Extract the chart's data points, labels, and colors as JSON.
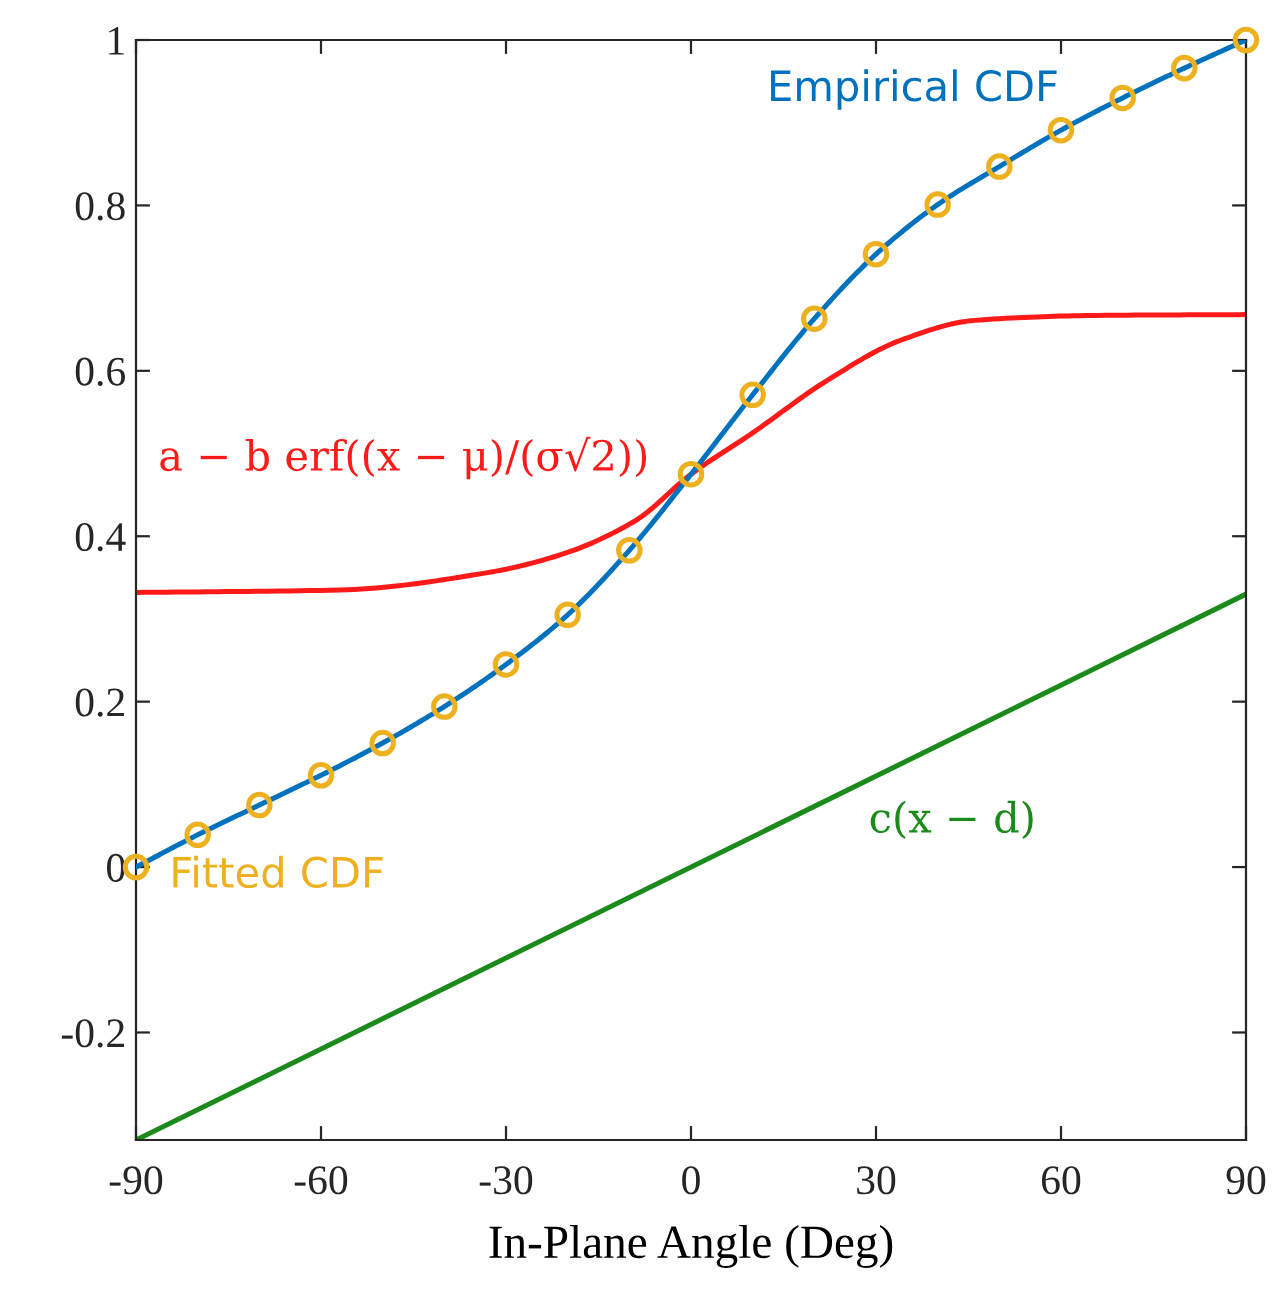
{
  "chart_data": {
    "type": "line",
    "xlabel": "In-Plane Angle (Deg)",
    "xlim": [
      -90,
      90
    ],
    "xticks": [
      -90,
      -60,
      -30,
      0,
      30,
      60,
      90
    ],
    "ylim": [
      -0.33,
      1
    ],
    "yticks": [
      -0.2,
      0,
      0.2,
      0.4,
      0.6,
      0.8,
      1
    ],
    "grid": false,
    "legend": false,
    "series": [
      {
        "name": "Empirical CDF",
        "color": "#0072bd",
        "x": [
          -90,
          -80,
          -70,
          -60,
          -50,
          -40,
          -30,
          -20,
          -10,
          0,
          10,
          20,
          30,
          40,
          50,
          60,
          70,
          80,
          90
        ],
        "values": [
          0,
          0.039,
          0.075,
          0.111,
          0.15,
          0.194,
          0.245,
          0.305,
          0.383,
          0.475,
          0.571,
          0.663,
          0.741,
          0.801,
          0.847,
          0.891,
          0.93,
          0.966,
          1
        ]
      },
      {
        "name": "Fitted CDF",
        "type": "scatter",
        "marker": "circle",
        "color": "#edb120",
        "x": [
          -90,
          -80,
          -70,
          -60,
          -50,
          -40,
          -30,
          -20,
          -10,
          0,
          10,
          20,
          30,
          40,
          50,
          60,
          70,
          80,
          90
        ],
        "values": [
          0,
          0.039,
          0.075,
          0.111,
          0.15,
          0.194,
          0.245,
          0.305,
          0.383,
          0.475,
          0.571,
          0.663,
          0.741,
          0.801,
          0.847,
          0.891,
          0.93,
          0.966,
          1
        ]
      },
      {
        "name": "a − b erf((x − μ)/(σ√2))",
        "color": "#ff1a1a",
        "x": [
          -90,
          -57,
          -33,
          -21,
          -9,
          0,
          10,
          22,
          34,
          46,
          66,
          90
        ],
        "values": [
          0.332,
          0.335,
          0.356,
          0.378,
          0.419,
          0.475,
          0.525,
          0.588,
          0.637,
          0.661,
          0.667,
          0.668
        ]
      },
      {
        "name": "c(x − d)",
        "color": "#1a8a1a",
        "x": [
          -90,
          90
        ],
        "values": [
          -0.33,
          0.33
        ]
      }
    ]
  }
}
